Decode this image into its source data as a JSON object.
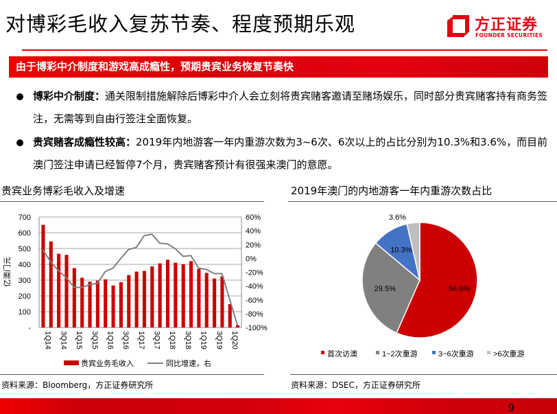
{
  "header": {
    "title": "对博彩毛收入复苏节奏、程度预期乐观",
    "logo_cn": "方正证券",
    "logo_en": "FOUNDER SECURITIES"
  },
  "banner": "由于博彩中介制度和游戏高成瘾性，预期贵宾业务恢复节奏快",
  "bullets": [
    {
      "bold": "博彩中介制度：",
      "text": "通关限制措施解除后博彩中介人会立刻将贵宾赌客邀请至赌场娱乐，同时部分贵宾赌客持有商务签注，无需等到自由行签注全面恢复。"
    },
    {
      "bold": "贵宾赌客成瘾性较高：",
      "text": "2019年内地游客一年内重游次数为3~6次、6次以上的占比分别为10.3%和3.6%，而目前澳门签注申请已经暂停7个月，贵宾赌客预计有很强来澳门的意愿。"
    }
  ],
  "left_panel": {
    "title": "贵宾业务博彩毛收入及增速",
    "source": "资料来源：Bloomberg，方正证券研究所"
  },
  "right_panel": {
    "title": "2019年澳门的内地游客一年内重游次数占比",
    "source": "资料来源：DSEC，方正证券研究所"
  },
  "page_number": "9",
  "colors": {
    "brand_red": "#e60012",
    "bar": "#cc0000",
    "line": "#7f7f7f",
    "pie": [
      "#cc0000",
      "#808080",
      "#4472c4",
      "#bfbfbf"
    ]
  },
  "chart_data": [
    {
      "type": "bar+line",
      "ylabel": "亿澳门元",
      "ylim": [
        0,
        700
      ],
      "yticks": [
        "-",
        "100",
        "200",
        "300",
        "400",
        "500",
        "600",
        "700"
      ],
      "y2lim": [
        -100,
        60
      ],
      "y2ticks": [
        "-100%",
        "-80%",
        "-60%",
        "-40%",
        "-20%",
        "0%",
        "20%",
        "40%",
        "60%"
      ],
      "categories": [
        "1Q14",
        "2Q14",
        "3Q14",
        "4Q14",
        "1Q15",
        "2Q15",
        "3Q15",
        "4Q15",
        "1Q16",
        "2Q16",
        "3Q16",
        "4Q16",
        "1Q17",
        "2Q17",
        "3Q17",
        "4Q17",
        "1Q18",
        "2Q18",
        "3Q18",
        "4Q18",
        "1Q19",
        "2Q19",
        "3Q19",
        "4Q19",
        "1Q20",
        "2Q20"
      ],
      "xtick_labels": [
        "1Q14",
        "3Q14",
        "1Q15",
        "3Q15",
        "1Q16",
        "3Q16",
        "1Q17",
        "3Q17",
        "1Q18",
        "3Q18",
        "1Q19",
        "3Q19",
        "1Q20"
      ],
      "series": [
        {
          "name": "贵宾业务毛收入",
          "type": "bar",
          "axis": "left",
          "values": [
            650,
            545,
            467,
            460,
            376,
            315,
            290,
            297,
            305,
            266,
            287,
            332,
            354,
            358,
            387,
            406,
            429,
            410,
            401,
            420,
            371,
            346,
            310,
            323,
            148,
            14
          ]
        },
        {
          "name": "同比增速，右",
          "type": "line",
          "axis": "right",
          "values": [
            12,
            -5,
            -18,
            -28,
            -42,
            -42,
            -38,
            -36,
            -19,
            -14,
            0,
            13,
            16,
            33,
            35,
            22,
            21,
            14,
            3,
            4,
            -14,
            -16,
            -22,
            -22,
            -60,
            -97
          ]
        }
      ],
      "grid": true,
      "legend": "bottom"
    },
    {
      "type": "pie",
      "categories": [
        "首次访澳",
        "1~2次重游",
        "3~6次重游",
        ">6次重游"
      ],
      "values": [
        56.6,
        29.5,
        10.3,
        3.6
      ],
      "labels": [
        "56.6%",
        "29.5%",
        "10.3%",
        "3.6%"
      ],
      "legend": "bottom"
    }
  ]
}
